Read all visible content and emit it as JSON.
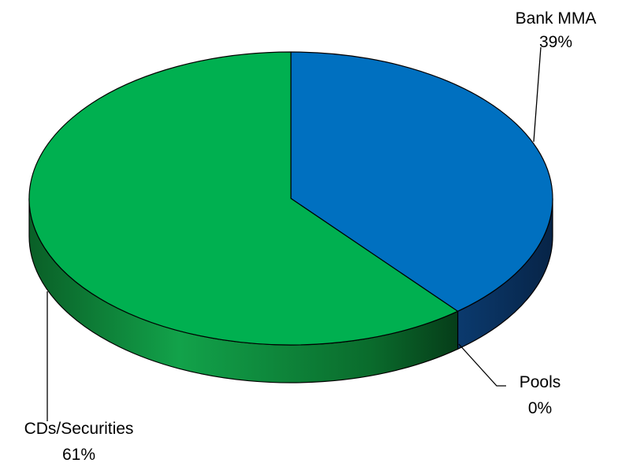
{
  "chart_data": {
    "type": "pie",
    "title": "",
    "slices": [
      {
        "label": "Bank MMA",
        "value": 39,
        "value_label": "39%",
        "color": "#0070c0",
        "side_color": "#0a2f5c"
      },
      {
        "label": "Pools",
        "value": 0,
        "value_label": "0%",
        "color": "#00b050",
        "side_color": "#0a6b2c"
      },
      {
        "label": "CDs/Securities",
        "value": 61,
        "value_label": "61%",
        "color": "#00b050",
        "side_color": "#0a6b2c"
      }
    ],
    "legend": "none",
    "style": "3d"
  }
}
